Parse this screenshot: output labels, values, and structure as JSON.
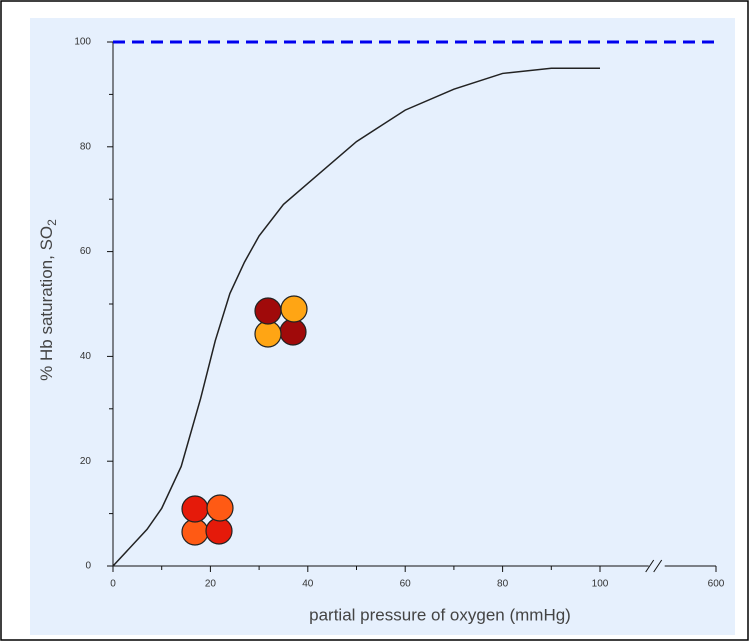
{
  "chart_data": {
    "type": "line",
    "xlabel": "partial pressure of oxygen (mmHg)",
    "ylabel": "% Hb saturation, SO",
    "ylabel_sub": "2",
    "x": [
      0,
      7,
      10,
      14,
      18,
      21,
      24,
      27,
      30,
      35,
      40,
      50,
      60,
      70,
      80,
      90,
      100
    ],
    "series": [
      {
        "color": "#222222",
        "values": [
          0,
          7,
          11,
          19,
          32,
          43,
          52,
          58,
          63,
          69,
          73,
          81,
          87,
          91,
          94,
          95,
          95
        ]
      }
    ],
    "reference_line": {
      "value": 100,
      "color": "#0000ee"
    },
    "xlim": [
      0,
      600
    ],
    "xticks": [
      0,
      20,
      40,
      60,
      80,
      100,
      600
    ],
    "ylim": [
      0,
      100
    ],
    "yticks": [
      0,
      20,
      40,
      60,
      80,
      100
    ],
    "minor_step": 10,
    "x_axis_break": true
  }
}
